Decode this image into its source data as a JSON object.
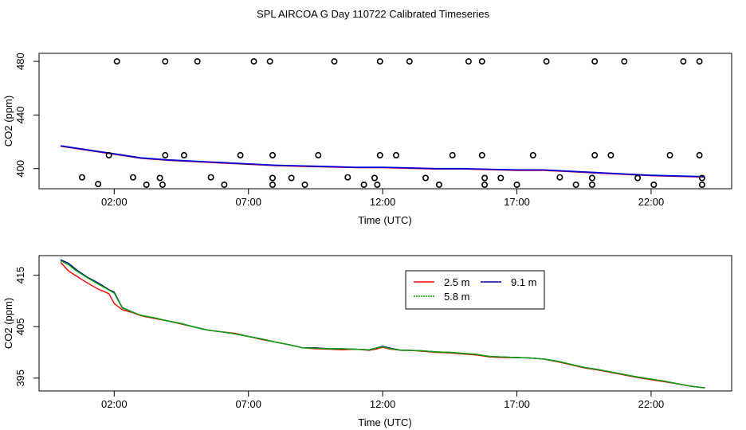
{
  "chart_data": [
    {
      "type": "scatter",
      "title": "SPL AIRCOA G  Day 110722  Calibrated Timeseries",
      "xlabel": "Time (UTC)",
      "ylabel": "CO2 (ppm)",
      "x_ticks": [
        {
          "value": 2,
          "label": "02:00"
        },
        {
          "value": 7,
          "label": "07:00"
        },
        {
          "value": 12,
          "label": "12:00"
        },
        {
          "value": 17,
          "label": "17:00"
        },
        {
          "value": 22,
          "label": "22:00"
        }
      ],
      "y_ticks": [
        {
          "value": 400,
          "label": "400"
        },
        {
          "value": 440,
          "label": "440"
        },
        {
          "value": 480,
          "label": "480"
        }
      ],
      "xlim": [
        -0.8,
        25.0
      ],
      "ylim": [
        385,
        486
      ],
      "points": [
        [
          0.8,
          393.5
        ],
        [
          1.4,
          388.5
        ],
        [
          1.8,
          410
        ],
        [
          2.1,
          480
        ],
        [
          2.7,
          393.5
        ],
        [
          3.2,
          388
        ],
        [
          3.7,
          393
        ],
        [
          3.9,
          410
        ],
        [
          3.8,
          388
        ],
        [
          3.9,
          480
        ],
        [
          4.6,
          410
        ],
        [
          5.1,
          480
        ],
        [
          5.6,
          393.5
        ],
        [
          6.1,
          388
        ],
        [
          6.7,
          410
        ],
        [
          7.2,
          480
        ],
        [
          7.8,
          480
        ],
        [
          7.9,
          410
        ],
        [
          7.9,
          393
        ],
        [
          7.9,
          388
        ],
        [
          8.6,
          393
        ],
        [
          9.1,
          388
        ],
        [
          9.6,
          410
        ],
        [
          10.2,
          480
        ],
        [
          10.7,
          393.5
        ],
        [
          11.3,
          388
        ],
        [
          11.7,
          393
        ],
        [
          11.8,
          388
        ],
        [
          11.9,
          410
        ],
        [
          11.9,
          480
        ],
        [
          12.5,
          410
        ],
        [
          13.0,
          480
        ],
        [
          13.6,
          393
        ],
        [
          14.1,
          388
        ],
        [
          14.6,
          410
        ],
        [
          15.2,
          480
        ],
        [
          15.7,
          480
        ],
        [
          15.7,
          410
        ],
        [
          15.8,
          393
        ],
        [
          15.8,
          388
        ],
        [
          16.4,
          393
        ],
        [
          17.0,
          388
        ],
        [
          17.6,
          410
        ],
        [
          18.1,
          480
        ],
        [
          18.6,
          393.5
        ],
        [
          19.2,
          388
        ],
        [
          19.8,
          393
        ],
        [
          19.8,
          388
        ],
        [
          19.9,
          410
        ],
        [
          19.9,
          480
        ],
        [
          20.5,
          410
        ],
        [
          21.0,
          480
        ],
        [
          21.5,
          393
        ],
        [
          22.1,
          388
        ],
        [
          22.7,
          410
        ],
        [
          23.2,
          480
        ],
        [
          23.8,
          480
        ],
        [
          23.8,
          410
        ],
        [
          23.9,
          393
        ],
        [
          23.9,
          388
        ]
      ],
      "line": {
        "color": "#0000dd",
        "x": [
          0.0,
          1.0,
          2.0,
          3.0,
          4.0,
          5.0,
          6.0,
          7.0,
          8.0,
          9.0,
          10.0,
          11.0,
          12.0,
          13.0,
          14.0,
          15.0,
          16.0,
          17.0,
          18.0,
          19.0,
          20.0,
          21.0,
          22.0,
          23.0,
          24.0
        ],
        "y": [
          417,
          414,
          411,
          408,
          406.5,
          405.5,
          404.5,
          403.5,
          402.5,
          402,
          401.5,
          401,
          401,
          400.5,
          400,
          400,
          399.5,
          399,
          399,
          398,
          397,
          396,
          395,
          394.5,
          394
        ]
      }
    },
    {
      "type": "line",
      "xlabel": "Time (UTC)",
      "ylabel": "CO2 (ppm)",
      "x_ticks": [
        {
          "value": 2,
          "label": "02:00"
        },
        {
          "value": 7,
          "label": "07:00"
        },
        {
          "value": 12,
          "label": "12:00"
        },
        {
          "value": 17,
          "label": "17:00"
        },
        {
          "value": 22,
          "label": "22:00"
        }
      ],
      "y_ticks": [
        {
          "value": 395,
          "label": "395"
        },
        {
          "value": 405,
          "label": "405"
        },
        {
          "value": 415,
          "label": "415"
        }
      ],
      "xlim": [
        -0.8,
        25.0
      ],
      "ylim": [
        392.5,
        418.8
      ],
      "legend": {
        "position": "top-right"
      },
      "x": [
        0.0,
        0.3,
        0.6,
        1.0,
        1.4,
        1.8,
        2.0,
        2.3,
        2.7,
        3.0,
        3.5,
        4.0,
        4.5,
        5.0,
        5.5,
        6.0,
        6.5,
        7.0,
        7.5,
        8.0,
        8.5,
        9.0,
        9.5,
        10.0,
        10.5,
        11.0,
        11.5,
        11.8,
        12.0,
        12.3,
        12.7,
        13.0,
        13.5,
        14.0,
        14.5,
        15.0,
        15.5,
        16.0,
        16.5,
        17.0,
        17.5,
        18.0,
        18.5,
        19.0,
        19.5,
        20.0,
        20.5,
        21.0,
        21.5,
        22.0,
        22.5,
        23.0,
        23.5,
        24.0
      ],
      "series": [
        {
          "name": "2.5 m",
          "color": "#ff0000",
          "values": [
            417.5,
            415.8,
            414.8,
            413.5,
            412.3,
            411.4,
            409.5,
            408.3,
            407.7,
            407.1,
            406.6,
            406.1,
            405.5,
            404.9,
            404.3,
            404.0,
            403.7,
            403.1,
            402.5,
            402.0,
            401.5,
            400.9,
            400.7,
            400.6,
            400.5,
            400.6,
            400.4,
            400.7,
            401.0,
            400.6,
            400.4,
            400.4,
            400.2,
            400.0,
            399.9,
            399.7,
            399.5,
            399.1,
            399.0,
            399.0,
            398.9,
            398.7,
            398.2,
            397.6,
            397.0,
            396.6,
            396.1,
            395.6,
            395.1,
            394.7,
            394.3,
            393.9,
            393.4,
            393.1
          ]
        },
        {
          "name": "9.1 m",
          "color": "#00008b",
          "values": [
            418.0,
            417.3,
            416.0,
            414.6,
            413.5,
            412.2,
            411.7,
            408.7,
            407.8,
            407.2,
            406.7,
            406.1,
            405.6,
            404.9,
            404.3,
            404.0,
            403.6,
            403.1,
            402.6,
            402.0,
            401.5,
            400.9,
            400.9,
            400.7,
            400.7,
            400.6,
            400.5,
            400.9,
            401.2,
            400.8,
            400.4,
            400.4,
            400.3,
            400.1,
            400.0,
            399.8,
            399.6,
            399.2,
            399.1,
            399.0,
            398.9,
            398.7,
            398.3,
            397.7,
            397.1,
            396.7,
            396.2,
            395.7,
            395.2,
            394.8,
            394.4,
            393.9,
            393.4,
            393.1
          ]
        },
        {
          "name": "5.8 m",
          "color": "#00aa00",
          "values": [
            417.8,
            417.0,
            415.8,
            414.5,
            413.3,
            412.1,
            411.5,
            408.6,
            407.8,
            407.2,
            406.7,
            406.1,
            405.6,
            404.9,
            404.3,
            404.0,
            403.6,
            403.1,
            402.6,
            402.0,
            401.5,
            400.9,
            400.8,
            400.7,
            400.7,
            400.6,
            400.5,
            400.9,
            401.1,
            400.7,
            400.4,
            400.4,
            400.3,
            400.1,
            400.0,
            399.8,
            399.6,
            399.2,
            399.1,
            399.0,
            398.9,
            398.7,
            398.3,
            397.7,
            397.1,
            396.7,
            396.2,
            395.7,
            395.2,
            394.8,
            394.4,
            393.9,
            393.4,
            393.1
          ]
        }
      ]
    }
  ]
}
